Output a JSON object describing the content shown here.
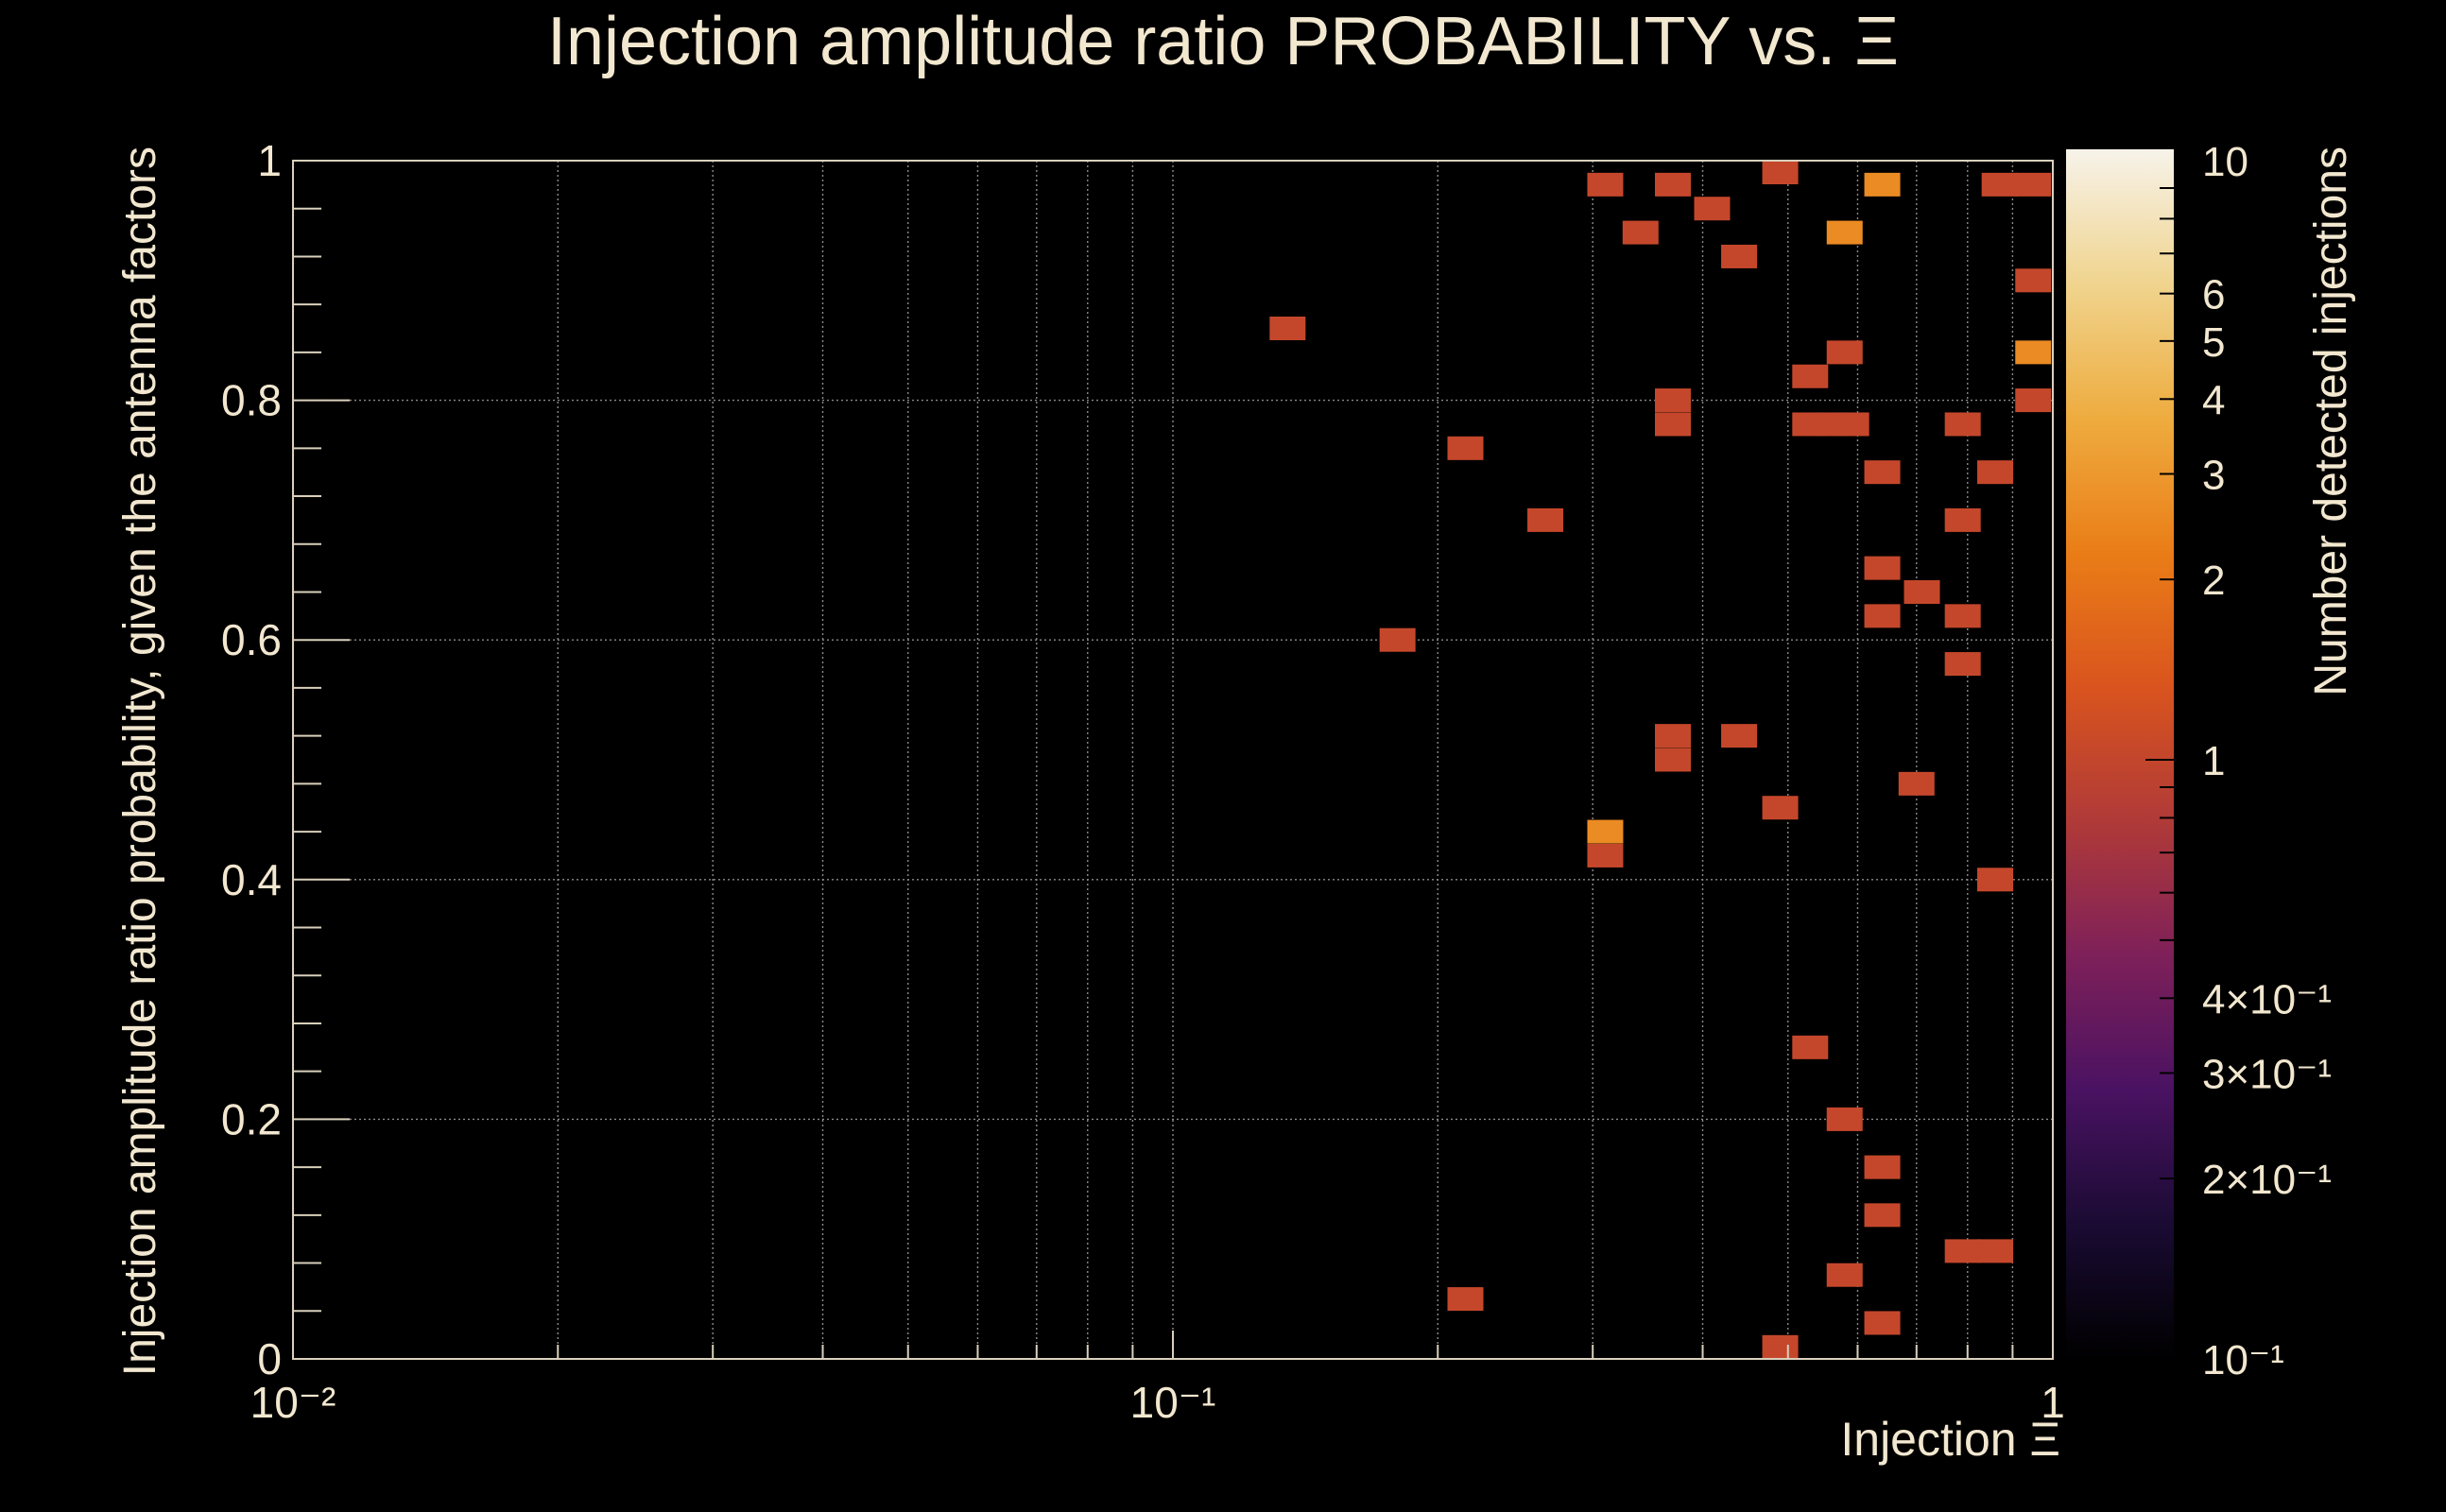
{
  "chart_data": {
    "type": "heatmap",
    "title": "Injection amplitude ratio PROBABILITY vs.  Ξ",
    "xlabel": "Injection Ξ",
    "ylabel": "Injection amplitude ratio probability, given the antenna factors",
    "zlabel": "Number detected injections",
    "x_scale": "log",
    "xlim": [
      0.01,
      1
    ],
    "ylim": [
      0,
      1
    ],
    "zlim": [
      0.1,
      10
    ],
    "z_scale": "log",
    "x_tick_labels": [
      "10⁻²",
      "10⁻¹",
      "1"
    ],
    "y_tick_labels": [
      "0",
      "0.2",
      "0.4",
      "0.6",
      "0.8",
      "1"
    ],
    "z_tick_labels": [
      "10",
      "6",
      "5",
      "4",
      "3",
      "2",
      "1",
      "4×10⁻¹",
      "3×10⁻¹",
      "2×10⁻¹",
      "10⁻¹"
    ],
    "grid": true,
    "colormap": [
      "#000000",
      "#1a0b33",
      "#4a1262",
      "#7e2059",
      "#b03a38",
      "#d9541e",
      "#ea7d17",
      "#eeac3f",
      "#f0d48e",
      "#f7f3ea"
    ],
    "bins": [
      {
        "x": 0.31,
        "y": 0.98,
        "count": 1
      },
      {
        "x": 0.37,
        "y": 0.98,
        "count": 1
      },
      {
        "x": 0.49,
        "y": 1.0,
        "count": 1
      },
      {
        "x": 0.64,
        "y": 0.98,
        "count": 2.5
      },
      {
        "x": 0.87,
        "y": 0.98,
        "count": 1
      },
      {
        "x": 0.95,
        "y": 0.98,
        "count": 1
      },
      {
        "x": 0.41,
        "y": 0.96,
        "count": 1
      },
      {
        "x": 0.34,
        "y": 0.94,
        "count": 1
      },
      {
        "x": 0.58,
        "y": 0.94,
        "count": 2.5
      },
      {
        "x": 0.44,
        "y": 0.92,
        "count": 1
      },
      {
        "x": 0.95,
        "y": 0.9,
        "count": 1
      },
      {
        "x": 0.135,
        "y": 0.86,
        "count": 1
      },
      {
        "x": 0.58,
        "y": 0.84,
        "count": 1
      },
      {
        "x": 0.95,
        "y": 0.84,
        "count": 2.5
      },
      {
        "x": 0.53,
        "y": 0.82,
        "count": 1
      },
      {
        "x": 0.37,
        "y": 0.8,
        "count": 1
      },
      {
        "x": 0.95,
        "y": 0.8,
        "count": 1
      },
      {
        "x": 0.37,
        "y": 0.78,
        "count": 1
      },
      {
        "x": 0.53,
        "y": 0.78,
        "count": 1
      },
      {
        "x": 0.56,
        "y": 0.78,
        "count": 1
      },
      {
        "x": 0.59,
        "y": 0.78,
        "count": 1
      },
      {
        "x": 0.79,
        "y": 0.78,
        "count": 1
      },
      {
        "x": 0.215,
        "y": 0.76,
        "count": 1
      },
      {
        "x": 0.64,
        "y": 0.74,
        "count": 1
      },
      {
        "x": 0.86,
        "y": 0.74,
        "count": 1
      },
      {
        "x": 0.265,
        "y": 0.7,
        "count": 1
      },
      {
        "x": 0.79,
        "y": 0.7,
        "count": 1
      },
      {
        "x": 0.64,
        "y": 0.66,
        "count": 1
      },
      {
        "x": 0.71,
        "y": 0.64,
        "count": 1
      },
      {
        "x": 0.64,
        "y": 0.62,
        "count": 1
      },
      {
        "x": 0.79,
        "y": 0.62,
        "count": 1
      },
      {
        "x": 0.18,
        "y": 0.6,
        "count": 1
      },
      {
        "x": 0.79,
        "y": 0.58,
        "count": 1
      },
      {
        "x": 0.37,
        "y": 0.52,
        "count": 1
      },
      {
        "x": 0.44,
        "y": 0.52,
        "count": 1
      },
      {
        "x": 0.37,
        "y": 0.5,
        "count": 1
      },
      {
        "x": 0.7,
        "y": 0.48,
        "count": 1
      },
      {
        "x": 0.49,
        "y": 0.46,
        "count": 1
      },
      {
        "x": 0.31,
        "y": 0.44,
        "count": 2.5
      },
      {
        "x": 0.31,
        "y": 0.42,
        "count": 1
      },
      {
        "x": 0.86,
        "y": 0.4,
        "count": 1
      },
      {
        "x": 0.53,
        "y": 0.26,
        "count": 1
      },
      {
        "x": 0.58,
        "y": 0.2,
        "count": 1
      },
      {
        "x": 0.64,
        "y": 0.16,
        "count": 1
      },
      {
        "x": 0.64,
        "y": 0.12,
        "count": 1
      },
      {
        "x": 0.79,
        "y": 0.09,
        "count": 1
      },
      {
        "x": 0.86,
        "y": 0.09,
        "count": 1
      },
      {
        "x": 0.58,
        "y": 0.07,
        "count": 1
      },
      {
        "x": 0.215,
        "y": 0.05,
        "count": 1
      },
      {
        "x": 0.64,
        "y": 0.03,
        "count": 1
      },
      {
        "x": 0.49,
        "y": 0.01,
        "count": 1
      }
    ]
  }
}
